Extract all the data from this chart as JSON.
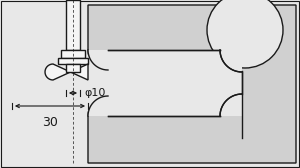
{
  "bg_color": "#e8e8e8",
  "fill_body": "#d0d0d0",
  "fill_white": "#f5f5f5",
  "line_color": "#1a1a1a",
  "dim_text_phi": "φ10",
  "dim_text_30": "30",
  "figsize": [
    3.0,
    1.68
  ],
  "dpi": 100
}
